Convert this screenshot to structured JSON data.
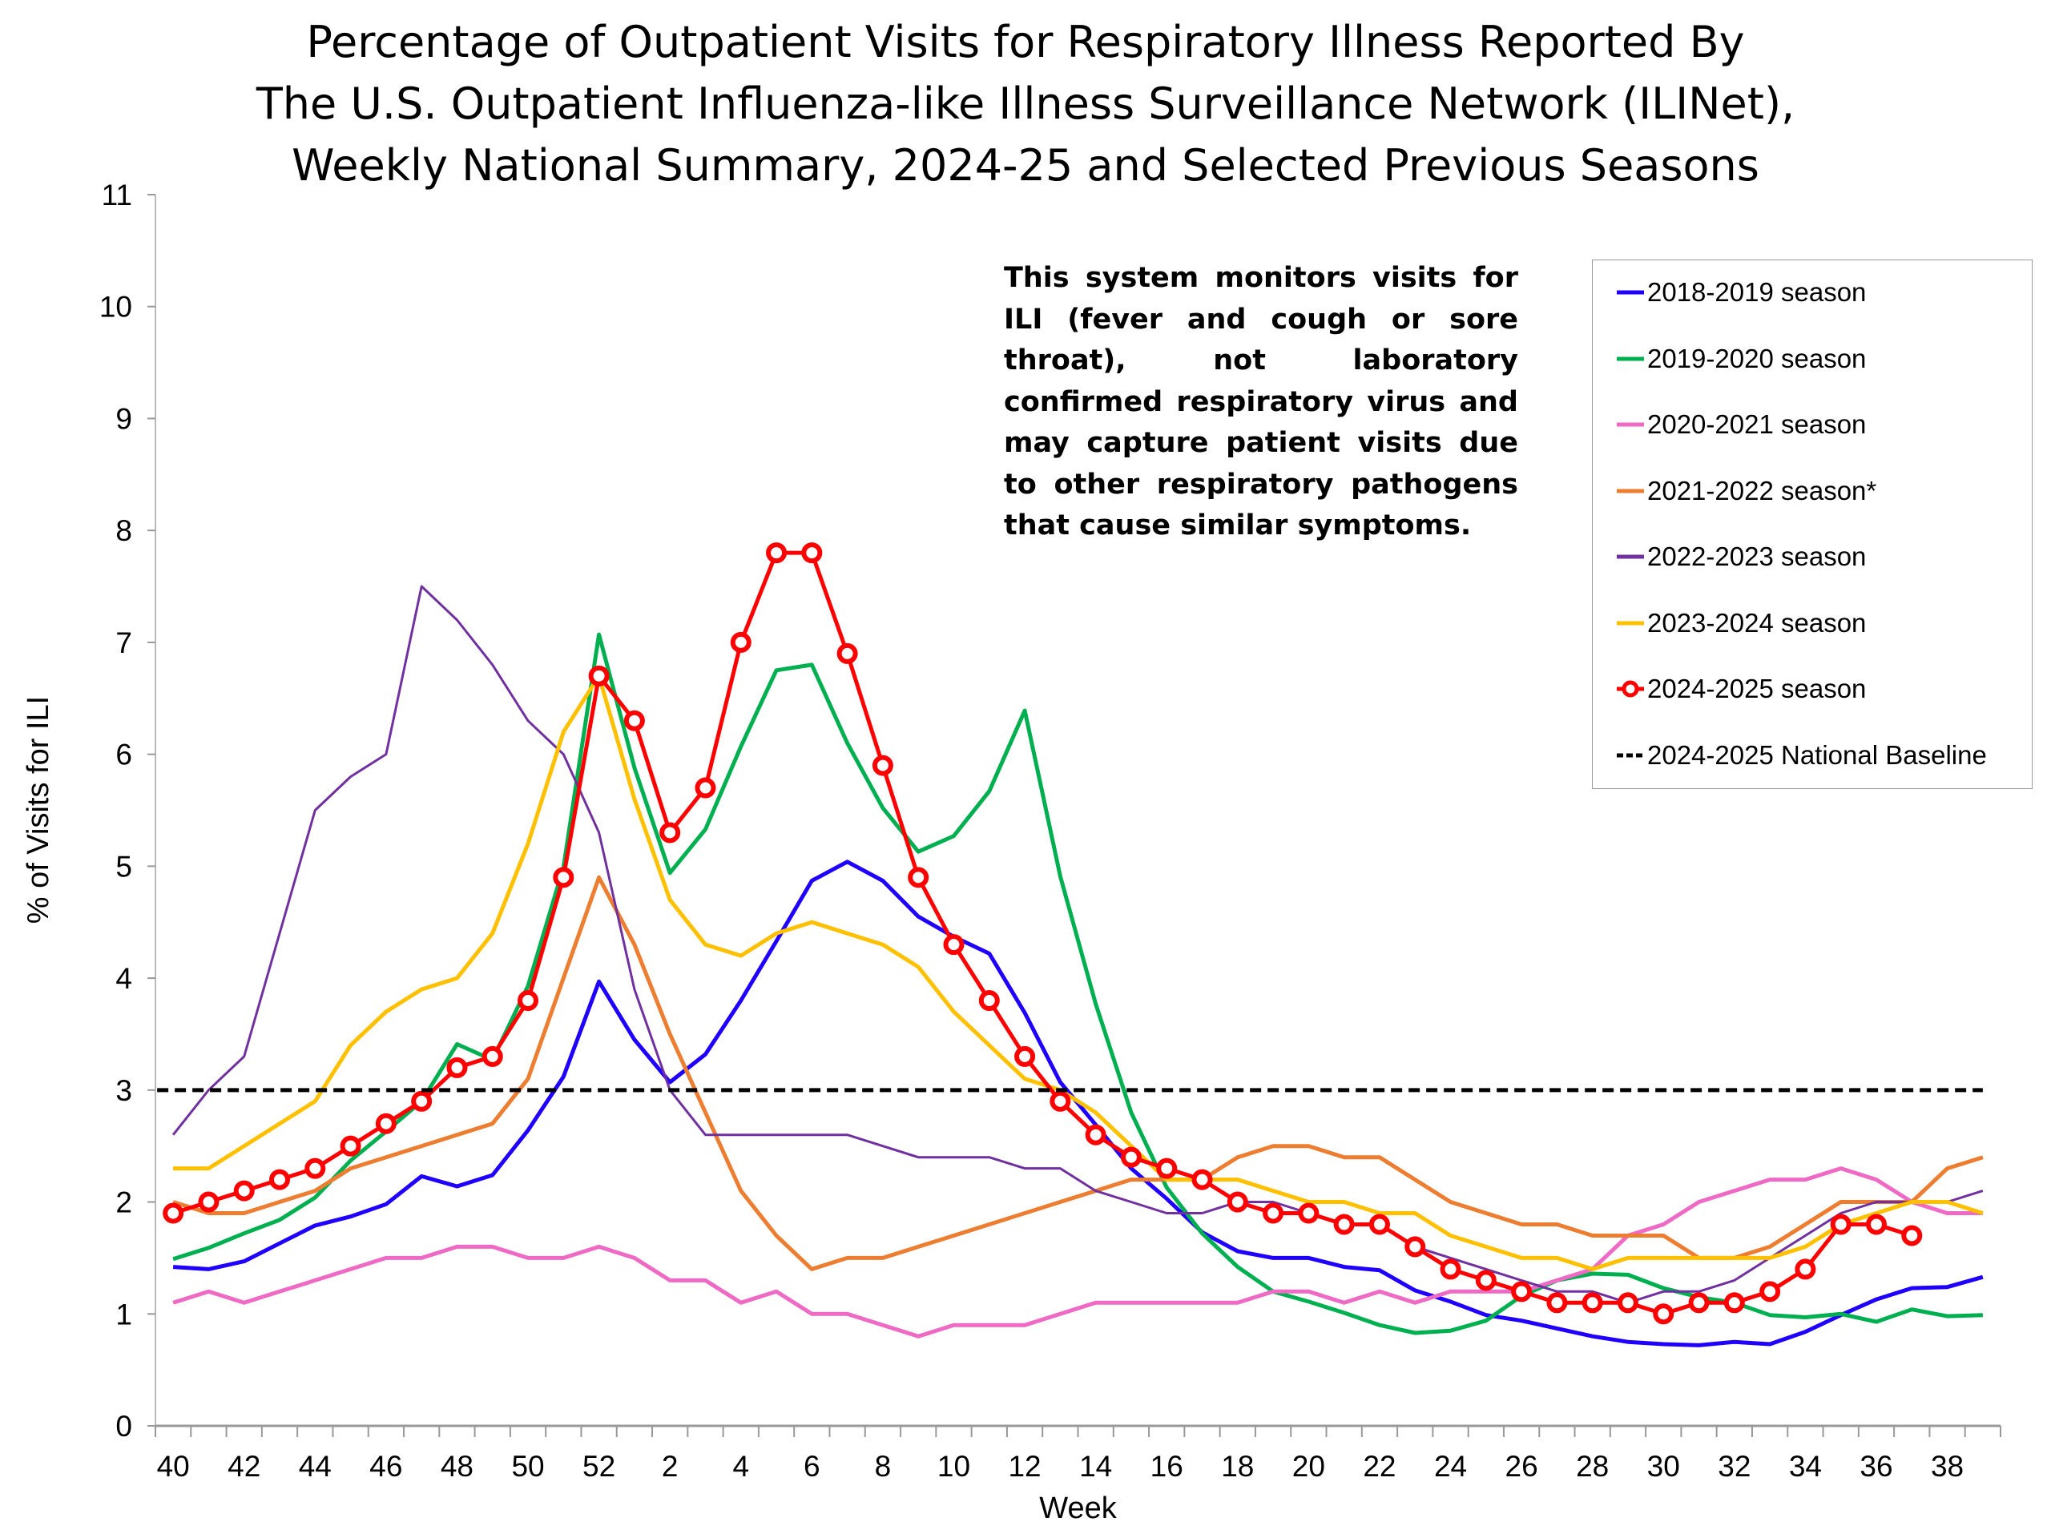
{
  "chart_data": {
    "type": "line",
    "title": [
      "Percentage of Outpatient Visits for Respiratory Illness Reported By",
      "The U.S. Outpatient Influenza-like Illness Surveillance Network (ILINet),",
      "Weekly National Summary, 2024-25 and Selected Previous Seasons"
    ],
    "xlabel": "Week",
    "ylabel": "% of Visits for ILI",
    "ylim": [
      0,
      11
    ],
    "yticks": [
      0,
      1,
      2,
      3,
      4,
      5,
      6,
      7,
      8,
      9,
      10,
      11
    ],
    "weeks": [
      40,
      41,
      42,
      43,
      44,
      45,
      46,
      47,
      48,
      49,
      50,
      51,
      52,
      1,
      2,
      3,
      4,
      5,
      6,
      7,
      8,
      9,
      10,
      11,
      12,
      13,
      14,
      15,
      16,
      17,
      18,
      19,
      20,
      21,
      22,
      23,
      24,
      25,
      26,
      27,
      28,
      29,
      30,
      31,
      32,
      33,
      34,
      35,
      36,
      37,
      38,
      39
    ],
    "xtick_labels": [
      "40",
      "42",
      "44",
      "46",
      "48",
      "50",
      "52",
      "2",
      "4",
      "6",
      "8",
      "10",
      "12",
      "14",
      "16",
      "18",
      "20",
      "22",
      "24",
      "26",
      "28",
      "30",
      "32",
      "34",
      "36",
      "38"
    ],
    "annotation": "This system monitors visits for ILI (fever and cough or sore throat), not laboratory confirmed respiratory virus and may capture patient visits due to other respiratory pathogens that cause similar symptoms.",
    "legend_position": "right",
    "series": [
      {
        "name": "2018-2019 season",
        "color": "#1f00ff",
        "values": [
          1.42,
          1.4,
          1.47,
          1.63,
          1.79,
          1.87,
          1.98,
          2.23,
          2.14,
          2.24,
          2.64,
          3.12,
          3.97,
          3.45,
          3.07,
          3.32,
          3.8,
          4.33,
          4.87,
          5.04,
          4.87,
          4.55,
          4.37,
          4.22,
          3.69,
          3.07,
          2.69,
          2.3,
          2.03,
          1.73,
          1.56,
          1.5,
          1.5,
          1.42,
          1.39,
          1.21,
          1.11,
          0.99,
          0.94,
          0.87,
          0.8,
          0.75,
          0.73,
          0.72,
          0.75,
          0.73,
          0.84,
          0.99,
          1.13,
          1.23,
          1.24,
          1.33
        ]
      },
      {
        "name": "2019-2020 season",
        "color": "#00b050",
        "values": [
          1.49,
          1.59,
          1.72,
          1.84,
          2.04,
          2.37,
          2.63,
          2.9,
          3.41,
          3.27,
          3.93,
          4.99,
          7.07,
          5.88,
          4.94,
          5.33,
          6.07,
          6.75,
          6.8,
          6.1,
          5.52,
          5.13,
          5.27,
          5.67,
          6.39,
          4.91,
          3.77,
          2.8,
          2.13,
          1.72,
          1.42,
          1.2,
          1.11,
          1.01,
          0.9,
          0.83,
          0.85,
          0.94,
          1.16,
          1.3,
          1.36,
          1.35,
          1.23,
          1.15,
          1.1,
          0.99,
          0.97,
          1.0,
          0.93,
          1.04,
          0.98,
          0.99
        ]
      },
      {
        "name": "2020-2021 season",
        "color": "#ee6ac4",
        "values": [
          1.1,
          1.2,
          1.1,
          1.2,
          1.3,
          1.4,
          1.5,
          1.5,
          1.6,
          1.6,
          1.5,
          1.5,
          1.6,
          1.5,
          1.3,
          1.3,
          1.1,
          1.2,
          1.0,
          1.0,
          0.9,
          0.8,
          0.9,
          0.9,
          0.9,
          1.0,
          1.1,
          1.1,
          1.1,
          1.1,
          1.1,
          1.2,
          1.2,
          1.1,
          1.2,
          1.1,
          1.2,
          1.2,
          1.2,
          1.3,
          1.4,
          1.7,
          1.8,
          2.0,
          2.1,
          2.2,
          2.2,
          2.3,
          2.2,
          2.0,
          1.9,
          1.9
        ]
      },
      {
        "name": "2021-2022 season*",
        "color": "#ed7d31",
        "values": [
          2.0,
          1.9,
          1.9,
          2.0,
          2.1,
          2.3,
          2.4,
          2.5,
          2.6,
          2.7,
          3.1,
          4.0,
          4.9,
          4.3,
          3.5,
          2.8,
          2.1,
          1.7,
          1.4,
          1.5,
          1.5,
          1.6,
          1.7,
          1.8,
          1.9,
          2.0,
          2.1,
          2.2,
          2.2,
          2.2,
          2.4,
          2.5,
          2.5,
          2.4,
          2.4,
          2.2,
          2.0,
          1.9,
          1.8,
          1.8,
          1.7,
          1.7,
          1.7,
          1.5,
          1.5,
          1.6,
          1.8,
          2.0,
          2.0,
          2.0,
          2.3,
          2.4
        ]
      },
      {
        "name": "2022-2023 season",
        "color": "#7030a0",
        "values": [
          2.6,
          3.0,
          3.3,
          4.4,
          5.5,
          5.8,
          6.0,
          7.5,
          7.2,
          6.8,
          6.3,
          6.0,
          5.3,
          3.9,
          3.0,
          2.6,
          2.6,
          2.6,
          2.6,
          2.6,
          2.5,
          2.4,
          2.4,
          2.4,
          2.3,
          2.3,
          2.1,
          2.0,
          1.9,
          1.9,
          2.0,
          2.0,
          1.9,
          1.8,
          1.8,
          1.6,
          1.5,
          1.4,
          1.3,
          1.2,
          1.2,
          1.1,
          1.2,
          1.2,
          1.3,
          1.5,
          1.7,
          1.9,
          2.0,
          2.0,
          2.0,
          2.1
        ]
      },
      {
        "name": "2023-2024 season",
        "color": "#ffc000",
        "values": [
          2.3,
          2.3,
          2.5,
          2.7,
          2.9,
          3.4,
          3.7,
          3.9,
          4.0,
          4.4,
          5.2,
          6.2,
          6.7,
          5.6,
          4.7,
          4.3,
          4.2,
          4.4,
          4.5,
          4.4,
          4.3,
          4.1,
          3.7,
          3.4,
          3.1,
          3.0,
          2.8,
          2.5,
          2.2,
          2.2,
          2.2,
          2.1,
          2.0,
          2.0,
          1.9,
          1.9,
          1.7,
          1.6,
          1.5,
          1.5,
          1.4,
          1.5,
          1.5,
          1.5,
          1.5,
          1.5,
          1.6,
          1.8,
          1.9,
          2.0,
          2.0,
          1.9
        ]
      },
      {
        "name": "2024-2025 season",
        "color": "#ff0000",
        "markers": true,
        "values": [
          1.9,
          2.0,
          2.1,
          2.2,
          2.3,
          2.5,
          2.7,
          2.9,
          3.2,
          3.3,
          3.8,
          4.9,
          6.7,
          6.3,
          5.3,
          5.7,
          7.0,
          7.8,
          7.8,
          6.9,
          5.9,
          4.9,
          4.3,
          3.8,
          3.3,
          2.9,
          2.6,
          2.4,
          2.3,
          2.2,
          2.0,
          1.9,
          1.9,
          1.8,
          1.8,
          1.6,
          1.4,
          1.3,
          1.2,
          1.1,
          1.1,
          1.1,
          1.0,
          1.1,
          1.1,
          1.2,
          1.4,
          1.8,
          1.8,
          1.7
        ]
      },
      {
        "name": "2024-2025 National Baseline",
        "color": "#000000",
        "dashed": true,
        "value": 3.0
      }
    ]
  }
}
